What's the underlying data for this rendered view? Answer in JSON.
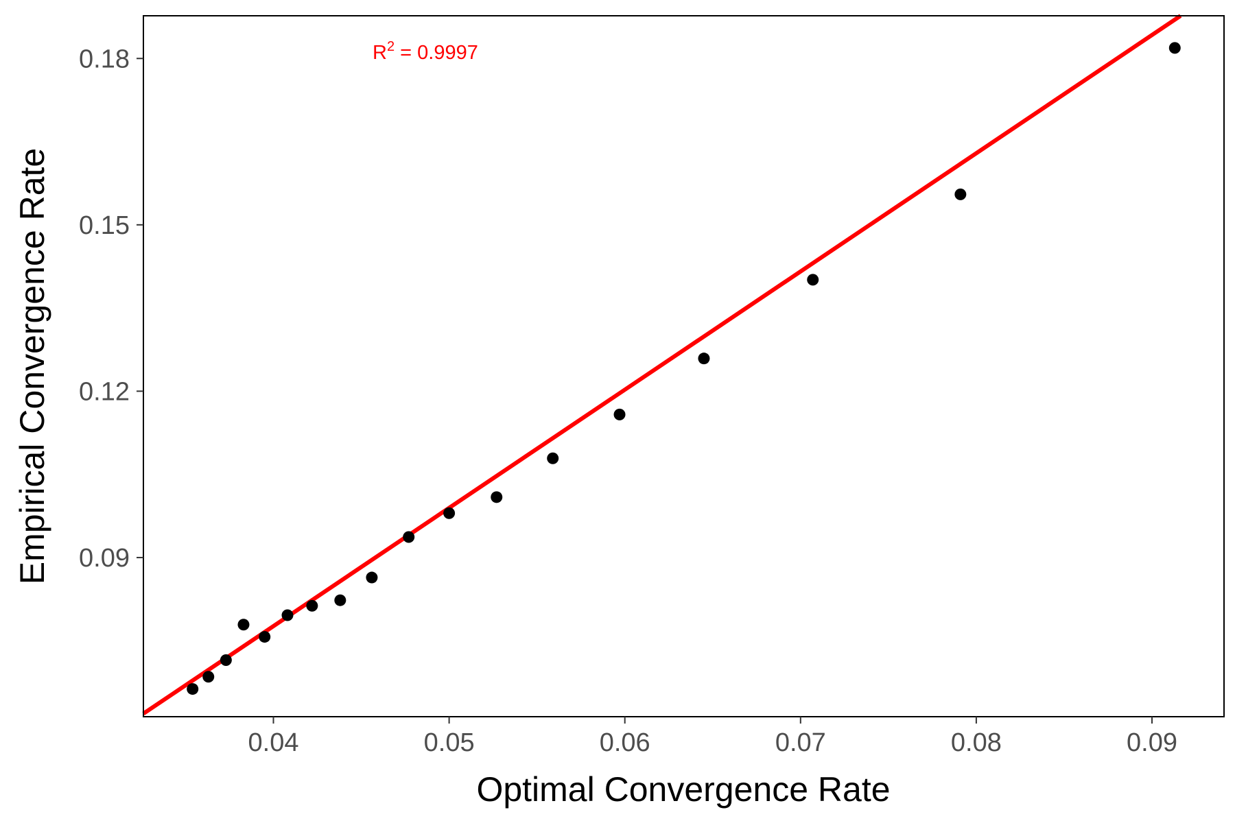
{
  "chart_data": {
    "type": "scatter",
    "xlabel": "Optimal Convergence Rate",
    "ylabel": "Empirical Convergence Rate",
    "xlim": [
      0.0326,
      0.0941
    ],
    "ylim": [
      0.0613,
      0.1877
    ],
    "xticks": [
      0.04,
      0.05,
      0.06,
      0.07,
      0.08,
      0.09
    ],
    "xtick_labels": [
      "0.04",
      "0.05",
      "0.06",
      "0.07",
      "0.08",
      "0.09"
    ],
    "yticks": [
      0.09,
      0.12,
      0.15,
      0.18
    ],
    "ytick_labels": [
      "0.09",
      "0.12",
      "0.15",
      "0.18"
    ],
    "grid": false,
    "points": [
      {
        "x": 0.0354,
        "y": 0.0663
      },
      {
        "x": 0.0363,
        "y": 0.0685
      },
      {
        "x": 0.0373,
        "y": 0.0715
      },
      {
        "x": 0.0383,
        "y": 0.0779
      },
      {
        "x": 0.0395,
        "y": 0.0757
      },
      {
        "x": 0.0408,
        "y": 0.0796
      },
      {
        "x": 0.0422,
        "y": 0.0813
      },
      {
        "x": 0.0438,
        "y": 0.0823
      },
      {
        "x": 0.0456,
        "y": 0.0864
      },
      {
        "x": 0.0477,
        "y": 0.0937
      },
      {
        "x": 0.05,
        "y": 0.098
      },
      {
        "x": 0.0527,
        "y": 0.1009
      },
      {
        "x": 0.0559,
        "y": 0.1079
      },
      {
        "x": 0.0597,
        "y": 0.1158
      },
      {
        "x": 0.0645,
        "y": 0.1259
      },
      {
        "x": 0.0707,
        "y": 0.1401
      },
      {
        "x": 0.0791,
        "y": 0.1555
      },
      {
        "x": 0.0913,
        "y": 0.1819
      }
    ],
    "fit_line": {
      "slope": 2.132,
      "intercept": -0.00765,
      "color": "#ff0000"
    },
    "point_color": "#000000",
    "annotation": {
      "text": "R",
      "superscript": "2",
      "value_text": " = 0.9997",
      "color": "#ff0000"
    }
  }
}
